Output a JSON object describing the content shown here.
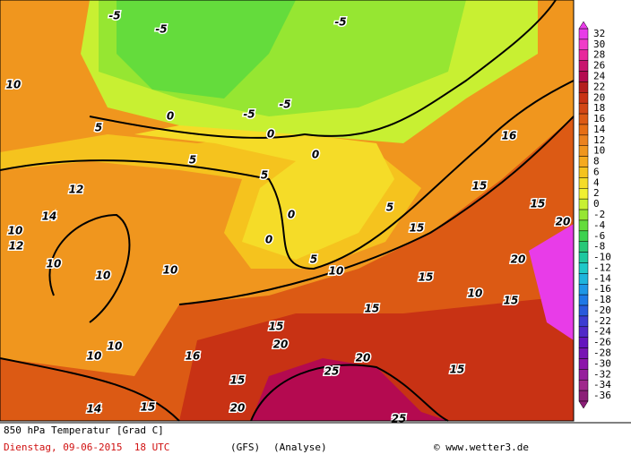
{
  "map": {
    "contour_labels": [
      "10",
      "10",
      "12",
      "14",
      "10",
      "10",
      "10",
      "10",
      "10",
      "12",
      "14",
      "15",
      "16",
      "15",
      "20",
      "15",
      "20",
      "25",
      "25",
      "20",
      "15",
      "15",
      "15",
      "10",
      "10",
      "15",
      "20",
      "15",
      "15",
      "16",
      "20",
      "5",
      "5",
      "5",
      "0",
      "0",
      "0",
      "5",
      "0",
      "-5",
      "-5",
      "-5",
      "-5",
      "0",
      "5",
      "15",
      "-5"
    ],
    "colorbar": {
      "labels": [
        32,
        30,
        28,
        26,
        24,
        22,
        20,
        18,
        16,
        14,
        12,
        10,
        8,
        6,
        4,
        2,
        0,
        -2,
        -4,
        -6,
        -8,
        -10,
        -12,
        -14,
        -16,
        -18,
        -20,
        -22,
        -24,
        -26,
        -28,
        -30,
        -32,
        -34,
        -36
      ],
      "colors": [
        "#e83ce8",
        "#f03cc8",
        "#e8289c",
        "#c8146e",
        "#b40a50",
        "#b41e1e",
        "#c83214",
        "#d24614",
        "#dc5a14",
        "#e66e14",
        "#eb821e",
        "#f0961e",
        "#f5aa1e",
        "#f5c31e",
        "#f5dc28",
        "#f0f032",
        "#c8f032",
        "#96e632",
        "#64dc3c",
        "#3cd250",
        "#28c878",
        "#1ec8a0",
        "#1ec8c8",
        "#1eb4dc",
        "#1e96e6",
        "#1e78e6",
        "#285adc",
        "#3c3cd2",
        "#5028c8",
        "#6414be",
        "#7814b4",
        "#8c14aa",
        "#961e9c",
        "#a0288c",
        "#8c1e78"
      ]
    }
  },
  "footer": {
    "title": "850 hPa Temperatur [Grad C]",
    "date": "Dienstag, 09-06-2015  18 UTC",
    "model": "(GFS)",
    "mode": "(Analyse)",
    "credit": "© www.wetter3.de"
  }
}
